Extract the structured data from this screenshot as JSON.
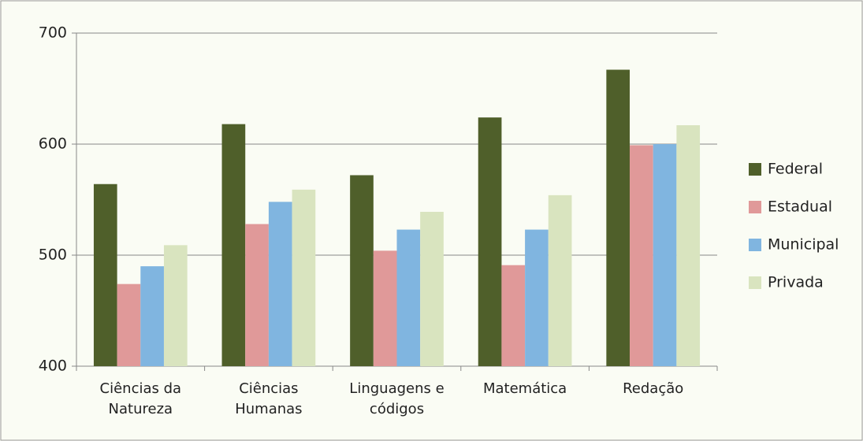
{
  "chart_data": {
    "type": "bar",
    "categories": [
      "Ciências da Natureza",
      "Ciências Humanas",
      "Linguagens e códigos",
      "Matemática",
      "Redação"
    ],
    "series": [
      {
        "name": "Federal",
        "color": "#4f5f2a",
        "values": [
          564,
          618,
          572,
          624,
          667
        ]
      },
      {
        "name": "Estadual",
        "color": "#e09999",
        "values": [
          474,
          528,
          504,
          491,
          599
        ]
      },
      {
        "name": "Municipal",
        "color": "#80b5e0",
        "values": [
          490,
          548,
          523,
          523,
          600
        ]
      },
      {
        "name": "Privada",
        "color": "#d9e4bf",
        "values": [
          509,
          559,
          539,
          554,
          617
        ]
      }
    ],
    "ylim": [
      400,
      700
    ],
    "yticks": [
      400,
      500,
      600,
      700
    ],
    "grid": true,
    "legend": "right"
  }
}
